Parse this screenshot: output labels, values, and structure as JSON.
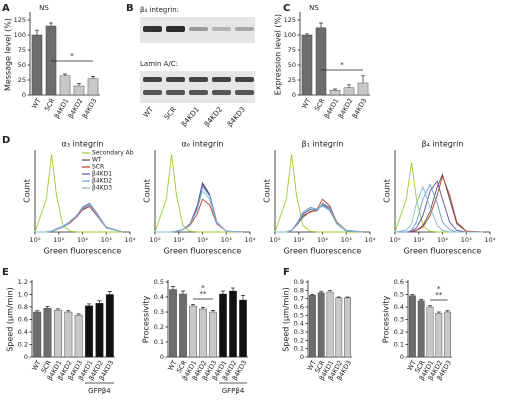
{
  "panel_letters": [
    "A",
    "B",
    "C",
    "D",
    "E",
    "F"
  ],
  "blot": {
    "labels": [
      "β₄ integrin:",
      "Lamin A/C:"
    ],
    "lanes": [
      "WT",
      "SCR",
      "β4KD1",
      "β4KD2",
      "β4KD3"
    ]
  },
  "chart_data": [
    {
      "type": "bar",
      "ylabel": "Message level (%)",
      "categories": [
        "WT",
        "SCR",
        "β4KD1",
        "β4KD2",
        "β4KD3"
      ],
      "values": [
        100,
        115,
        32,
        15,
        27
      ],
      "errors": [
        8,
        5,
        3,
        4,
        4
      ],
      "colors": [
        "#6d6d6d",
        "#6d6d6d",
        "#c8c8c8",
        "#c8c8c8",
        "#c8c8c8"
      ],
      "ylim": [
        0,
        135
      ],
      "yticks": [
        0,
        25,
        50,
        75,
        100,
        125
      ],
      "annotations": [
        "NS",
        "*"
      ]
    },
    {
      "type": "bar",
      "ylabel": "Expression level (%)",
      "categories": [
        "WT",
        "SCR",
        "β4KD1",
        "β4KD2",
        "β4KD3"
      ],
      "values": [
        100,
        112,
        8,
        12,
        20
      ],
      "errors": [
        2,
        8,
        2,
        5,
        12
      ],
      "colors": [
        "#6d6d6d",
        "#6d6d6d",
        "#c8c8c8",
        "#c8c8c8",
        "#c8c8c8"
      ],
      "ylim": [
        0,
        135
      ],
      "yticks": [
        0,
        25,
        50,
        75,
        100,
        125
      ],
      "annotations": [
        "NS",
        "*"
      ]
    },
    {
      "type": "line",
      "title": "α₃ integrin",
      "xlabel": "Green fluorescence",
      "ylabel": "Count",
      "log_x": true,
      "legend": "upper right",
      "xlim": [
        1,
        10000
      ],
      "xticks": [
        {
          "value": 1,
          "label": "10⁰"
        },
        {
          "value": 10,
          "label": "10¹"
        },
        {
          "value": 100,
          "label": "10²"
        },
        {
          "value": 1000,
          "label": "10³"
        },
        {
          "value": 10000,
          "label": "10⁴"
        }
      ],
      "ylim": [
        0,
        100
      ],
      "x": [
        1,
        3,
        5,
        8,
        15,
        30,
        60,
        100,
        200,
        400,
        1000,
        5000
      ],
      "series": [
        {
          "name": "Secondary Ab",
          "color": "#9acd32",
          "values": [
            0,
            40,
            95,
            45,
            8,
            1,
            0,
            0,
            0,
            0,
            0,
            0
          ]
        },
        {
          "name": "WT",
          "color": "#555555",
          "values": [
            0,
            0,
            1,
            3,
            6,
            12,
            20,
            28,
            33,
            22,
            6,
            0
          ]
        },
        {
          "name": "SCR",
          "color": "#c0392b",
          "values": [
            0,
            0,
            1,
            3,
            6,
            11,
            19,
            27,
            31,
            20,
            5,
            0
          ]
        },
        {
          "name": "β4KD1",
          "color": "#5b4fa0",
          "values": [
            0,
            0,
            1,
            3,
            6,
            12,
            21,
            30,
            35,
            23,
            6,
            0
          ]
        },
        {
          "name": "β4KD2",
          "color": "#6a9bd8",
          "values": [
            0,
            0,
            1,
            4,
            7,
            13,
            21,
            29,
            33,
            21,
            5,
            0
          ]
        },
        {
          "name": "β4KD3",
          "color": "#88bbcc",
          "values": [
            0,
            0,
            1,
            3,
            6,
            12,
            20,
            29,
            34,
            22,
            6,
            0
          ]
        }
      ]
    },
    {
      "type": "line",
      "title": "α₆ integrin",
      "xlabel": "Green fluorescence",
      "ylabel": "Count",
      "log_x": true,
      "xlim": [
        1,
        10000
      ],
      "xticks": [
        {
          "value": 1,
          "label": "10⁰"
        },
        {
          "value": 10,
          "label": "10¹"
        },
        {
          "value": 100,
          "label": "10²"
        },
        {
          "value": 1000,
          "label": "10³"
        },
        {
          "value": 10000,
          "label": "10⁴"
        }
      ],
      "ylim": [
        0,
        100
      ],
      "x": [
        1,
        3,
        5,
        8,
        15,
        30,
        60,
        100,
        200,
        400,
        1000,
        5000
      ],
      "series": [
        {
          "color": "#9acd32",
          "values": [
            0,
            40,
            95,
            45,
            8,
            1,
            0,
            0,
            0,
            0,
            0,
            0
          ]
        },
        {
          "color": "#555555",
          "values": [
            0,
            0,
            0,
            1,
            3,
            10,
            30,
            58,
            45,
            12,
            1,
            0
          ]
        },
        {
          "color": "#c0392b",
          "values": [
            0,
            0,
            0,
            1,
            3,
            8,
            22,
            40,
            33,
            10,
            1,
            0
          ]
        },
        {
          "color": "#5b4fa0",
          "values": [
            0,
            0,
            0,
            1,
            3,
            10,
            32,
            60,
            46,
            12,
            1,
            0
          ]
        },
        {
          "color": "#6a9bd8",
          "values": [
            0,
            0,
            0,
            1,
            3,
            9,
            28,
            55,
            44,
            12,
            1,
            0
          ]
        },
        {
          "color": "#88bbcc",
          "values": [
            0,
            0,
            0,
            1,
            3,
            9,
            27,
            50,
            40,
            11,
            1,
            0
          ]
        }
      ]
    },
    {
      "type": "line",
      "title": "β₁ integrin",
      "xlabel": "Green fluorescence",
      "ylabel": "Count",
      "log_x": true,
      "xlim": [
        1,
        10000
      ],
      "xticks": [
        {
          "value": 1,
          "label": "10⁰"
        },
        {
          "value": 10,
          "label": "10¹"
        },
        {
          "value": 100,
          "label": "10²"
        },
        {
          "value": 1000,
          "label": "10³"
        },
        {
          "value": 10000,
          "label": "10⁴"
        }
      ],
      "ylim": [
        0,
        100
      ],
      "x": [
        1,
        3,
        5,
        8,
        15,
        30,
        60,
        100,
        200,
        400,
        1000,
        5000
      ],
      "series": [
        {
          "color": "#9acd32",
          "values": [
            0,
            40,
            95,
            45,
            8,
            1,
            0,
            0,
            0,
            0,
            0,
            0
          ]
        },
        {
          "color": "#555555",
          "values": [
            0,
            0,
            2,
            8,
            18,
            25,
            26,
            35,
            30,
            12,
            2,
            0
          ]
        },
        {
          "color": "#c0392b",
          "values": [
            0,
            0,
            2,
            10,
            20,
            24,
            28,
            40,
            32,
            12,
            2,
            0
          ]
        },
        {
          "color": "#5b4fa0",
          "values": [
            0,
            0,
            2,
            9,
            22,
            28,
            27,
            33,
            28,
            10,
            2,
            0
          ]
        },
        {
          "color": "#6a9bd8",
          "values": [
            0,
            0,
            2,
            10,
            24,
            30,
            28,
            32,
            26,
            10,
            1,
            0
          ]
        },
        {
          "color": "#88bbcc",
          "values": [
            0,
            0,
            2,
            9,
            21,
            27,
            27,
            34,
            29,
            11,
            2,
            0
          ]
        }
      ]
    },
    {
      "type": "line",
      "title": "β₄ integrin",
      "xlabel": "Green fluorescence",
      "ylabel": "Count",
      "log_x": true,
      "xlim": [
        1,
        10000
      ],
      "xticks": [
        {
          "value": 1,
          "label": "10⁰"
        },
        {
          "value": 10,
          "label": "10¹"
        },
        {
          "value": 100,
          "label": "10²"
        },
        {
          "value": 1000,
          "label": "10³"
        },
        {
          "value": 10000,
          "label": "10⁴"
        }
      ],
      "ylim": [
        0,
        100
      ],
      "x": [
        1,
        3,
        5,
        8,
        15,
        30,
        60,
        100,
        200,
        400,
        1000,
        5000
      ],
      "series": [
        {
          "color": "#9acd32",
          "values": [
            0,
            40,
            85,
            40,
            8,
            1,
            0,
            0,
            0,
            0,
            0,
            0
          ]
        },
        {
          "color": "#555555",
          "values": [
            0,
            0,
            0,
            2,
            8,
            25,
            55,
            70,
            40,
            10,
            1,
            0
          ]
        },
        {
          "color": "#c0392b",
          "values": [
            0,
            0,
            0,
            2,
            6,
            20,
            45,
            68,
            45,
            12,
            1,
            0
          ]
        },
        {
          "color": "#5b4fa0",
          "values": [
            0,
            0,
            1,
            5,
            20,
            50,
            62,
            40,
            12,
            2,
            0,
            0
          ]
        },
        {
          "color": "#6a9bd8",
          "values": [
            0,
            0,
            2,
            12,
            40,
            58,
            35,
            12,
            3,
            0,
            0,
            0
          ]
        },
        {
          "color": "#88bbcc",
          "values": [
            0,
            2,
            10,
            35,
            55,
            30,
            8,
            2,
            0,
            0,
            0,
            0
          ]
        }
      ]
    },
    {
      "type": "bar",
      "ylabel": "Speed (μm/min)",
      "categories": [
        "WT",
        "SCR",
        "β4KD1",
        "β4KD2",
        "β4KD3",
        "β4KD1",
        "β4KD2",
        "β4KD3"
      ],
      "values": [
        0.72,
        0.78,
        0.75,
        0.72,
        0.67,
        0.82,
        0.86,
        1.0
      ],
      "errors": [
        0.02,
        0.03,
        0.02,
        0.02,
        0.02,
        0.03,
        0.04,
        0.05
      ],
      "colors": [
        "#6d6d6d",
        "#6d6d6d",
        "#c8c8c8",
        "#c8c8c8",
        "#c8c8c8",
        "#111111",
        "#111111",
        "#111111"
      ],
      "ylim": [
        0,
        1.2
      ],
      "yticks": [
        0,
        0.2,
        0.4,
        0.6,
        0.8,
        {
          "value": 1,
          "label": "1.0"
        },
        1.2
      ],
      "group_label": "GFPβ4"
    },
    {
      "type": "bar",
      "ylabel": "Processivity",
      "categories": [
        "WT",
        "SCR",
        "β4KD1",
        "β4KD2",
        "β4KD3",
        "β4KD1",
        "β4KD2",
        "β4KD3"
      ],
      "values": [
        0.45,
        0.42,
        0.34,
        0.32,
        0.3,
        0.42,
        0.44,
        0.38
      ],
      "errors": [
        0.02,
        0.02,
        0.01,
        0.01,
        0.01,
        0.02,
        0.02,
        0.03
      ],
      "colors": [
        "#6d6d6d",
        "#6d6d6d",
        "#c8c8c8",
        "#c8c8c8",
        "#c8c8c8",
        "#111111",
        "#111111",
        "#111111"
      ],
      "ylim": [
        0,
        0.5
      ],
      "yticks": [
        0,
        0.1,
        0.2,
        0.3,
        0.4,
        0.5
      ],
      "annotations": [
        "*",
        "**"
      ],
      "group_label": "GFPβ4"
    },
    {
      "type": "bar",
      "ylabel": "Speed (μm/min)",
      "categories": [
        "WT",
        "SCR",
        "β4KD1",
        "β4KD2",
        "β4KD3"
      ],
      "values": [
        0.74,
        0.77,
        0.78,
        0.71,
        0.71
      ],
      "errors": [
        0.01,
        0.02,
        0.02,
        0.01,
        0.01
      ],
      "colors": [
        "#6d6d6d",
        "#6d6d6d",
        "#c8c8c8",
        "#c8c8c8",
        "#c8c8c8"
      ],
      "ylim": [
        0,
        0.9
      ],
      "yticks": [
        0,
        0.1,
        0.2,
        0.3,
        0.4,
        0.5,
        0.6,
        0.7,
        0.8,
        0.9
      ]
    },
    {
      "type": "bar",
      "ylabel": "Processivity",
      "categories": [
        "WT",
        "SCR",
        "β4KD1",
        "β4KD2",
        "β4KD3"
      ],
      "values": [
        0.49,
        0.45,
        0.4,
        0.35,
        0.36
      ],
      "errors": [
        0.01,
        0.01,
        0.01,
        0.01,
        0.01
      ],
      "colors": [
        "#6d6d6d",
        "#6d6d6d",
        "#c8c8c8",
        "#c8c8c8",
        "#c8c8c8"
      ],
      "ylim": [
        0,
        0.6
      ],
      "yticks": [
        0,
        0.1,
        0.2,
        0.3,
        0.4,
        0.5,
        0.6
      ],
      "annotations": [
        "*",
        "**"
      ]
    }
  ]
}
